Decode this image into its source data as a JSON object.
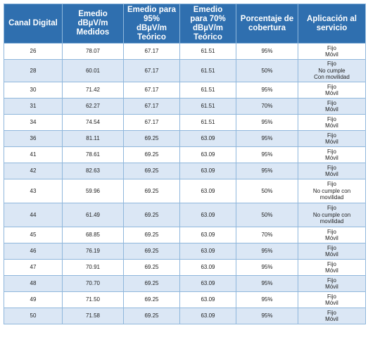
{
  "table": {
    "headers": [
      "Canal Digital",
      "Emedio\ndBµV/m\nMedidos",
      "Emedio para\n95%\ndBµV/m\nTeórico",
      "Emedio\npara 70%\ndBµV/m\nTeórico",
      "Porcentaje de\ncobertura",
      "Aplicación al\nservicio"
    ],
    "rows": [
      [
        "26",
        "78.07",
        "67.17",
        "61.51",
        "95%",
        "Fijo\nMóvil"
      ],
      [
        "28",
        "60.01",
        "67.17",
        "61.51",
        "50%",
        "Fijo\nNo cumple\nCon movilidad"
      ],
      [
        "30",
        "71.42",
        "67.17",
        "61.51",
        "95%",
        "Fijo\nMóvil"
      ],
      [
        "31",
        "62.27",
        "67.17",
        "61.51",
        "70%",
        "Fijo\nMóvil"
      ],
      [
        "34",
        "74.54",
        "67.17",
        "61.51",
        "95%",
        "Fijo\nMóvil"
      ],
      [
        "36",
        "81.11",
        "69.25",
        "63.09",
        "95%",
        "Fijo\nMóvil"
      ],
      [
        "41",
        "78.61",
        "69.25",
        "63.09",
        "95%",
        "Fijo\nMóvil"
      ],
      [
        "42",
        "82.63",
        "69.25",
        "63.09",
        "95%",
        "Fijo\nMóvil"
      ],
      [
        "43",
        "59.96",
        "69.25",
        "63.09",
        "50%",
        "Fijo\nNo cumple con\nmovilidad"
      ],
      [
        "44",
        "61.49",
        "69.25",
        "63.09",
        "50%",
        "Fijo\nNo cumple con\nmovilidad"
      ],
      [
        "45",
        "68.85",
        "69.25",
        "63.09",
        "70%",
        "Fijo\nMóvil"
      ],
      [
        "46",
        "76.19",
        "69.25",
        "63.09",
        "95%",
        "Fijo\nMóvil"
      ],
      [
        "47",
        "70.91",
        "69.25",
        "63.09",
        "95%",
        "Fijo\nMóvil"
      ],
      [
        "48",
        "70.70",
        "69.25",
        "63.09",
        "95%",
        "Fijo\nMóvil"
      ],
      [
        "49",
        "71.50",
        "69.25",
        "63.09",
        "95%",
        "Fijo\nMóvil"
      ],
      [
        "50",
        "71.58",
        "69.25",
        "63.09",
        "95%",
        "Fijo\nMóvil"
      ]
    ]
  }
}
